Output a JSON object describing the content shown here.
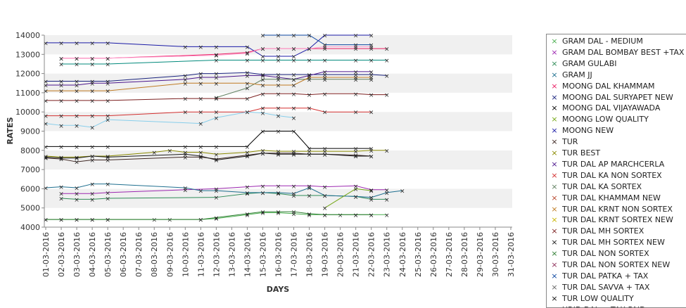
{
  "chart_data": {
    "type": "line",
    "title": "",
    "xlabel": "DAYS",
    "ylabel": "RATES",
    "ylim": [
      4000,
      14000
    ],
    "yticks": [
      "4000",
      "5000",
      "6000",
      "7000",
      "8000",
      "9000",
      "10000",
      "11000",
      "12000",
      "13000",
      "14000"
    ],
    "legend_position": "right",
    "grid": "alternating horizontal bands",
    "categories": [
      "01-03-2016",
      "02-03-2016",
      "03-03-2016",
      "04-03-2016",
      "05-03-2016",
      "06-03-2016",
      "07-03-2016",
      "08-03-2016",
      "09-03-2016",
      "10-03-2016",
      "11-03-2016",
      "12-03-2016",
      "13-03-2016",
      "14-03-2016",
      "15-03-2016",
      "16-03-2016",
      "17-03-2016",
      "18-03-2016",
      "19-03-2016",
      "20-03-2016",
      "21-03-2016",
      "22-03-2016",
      "23-03-2016",
      "24-03-2016",
      "25-03-2016",
      "26-03-2016",
      "27-03-2016",
      "28-03-2016",
      "29-03-2016",
      "30-03-2016",
      "31-03-2016"
    ],
    "series": [
      {
        "name": "GRAM DAL - MEDIUM",
        "color": "#4caf50",
        "values": [
          4400,
          4400,
          4400,
          4400,
          4400,
          null,
          null,
          4400,
          4400,
          null,
          4400,
          4450,
          null,
          4650,
          4750,
          4750,
          4700,
          4650,
          4650,
          4650,
          4650,
          4650,
          4650,
          null,
          null,
          null,
          null,
          null,
          null,
          null,
          null
        ]
      },
      {
        "name": "GRAM DAL BOMBAY BEST +TAX",
        "color": "#9c27b0",
        "values": [
          null,
          5750,
          5750,
          5750,
          5800,
          null,
          null,
          null,
          null,
          5950,
          null,
          6000,
          null,
          6100,
          6150,
          6150,
          6150,
          6150,
          6100,
          null,
          6150,
          5950,
          5950,
          null,
          null,
          null,
          null,
          null,
          null,
          null,
          null
        ]
      },
      {
        "name": "GRAM GULABI",
        "color": "#2e8b57",
        "values": [
          null,
          5500,
          5450,
          5450,
          5500,
          null,
          null,
          null,
          null,
          null,
          null,
          5550,
          null,
          5750,
          5800,
          5750,
          5650,
          5650,
          5650,
          null,
          5600,
          5450,
          5450,
          null,
          null,
          null,
          null,
          null,
          null,
          null,
          null
        ]
      },
      {
        "name": "GRAM JJ",
        "color": "#1e6f8f",
        "values": [
          6050,
          6100,
          6050,
          6250,
          6250,
          null,
          null,
          null,
          null,
          6050,
          5900,
          5900,
          null,
          5800,
          5800,
          5800,
          5750,
          6050,
          5650,
          null,
          5600,
          5550,
          5800,
          5900,
          null,
          null,
          null,
          null,
          null,
          null,
          null
        ]
      },
      {
        "name": "MOONG DAL KHAMMAM",
        "color": "#e91e63",
        "values": [
          null,
          12800,
          12800,
          12800,
          12800,
          null,
          null,
          null,
          null,
          null,
          null,
          13000,
          null,
          13100,
          13300,
          13300,
          13300,
          13300,
          13300,
          null,
          13300,
          13300,
          13300,
          null,
          null,
          null,
          null,
          null,
          null,
          null,
          null
        ]
      },
      {
        "name": "MOONG DAL SURYAPET NEW",
        "color": "#1a237e",
        "values": [
          11600,
          11600,
          11600,
          11600,
          11600,
          null,
          null,
          null,
          null,
          11900,
          12000,
          12000,
          null,
          12050,
          11950,
          11950,
          11950,
          11950,
          11950,
          null,
          11950,
          11950,
          11900,
          null,
          null,
          null,
          null,
          null,
          null,
          null,
          null
        ]
      },
      {
        "name": "MOONG DAL VIJAYAWADA",
        "color": "#000000",
        "values": [
          8200,
          8200,
          8200,
          8200,
          8200,
          null,
          null,
          null,
          null,
          8200,
          8200,
          8200,
          null,
          8200,
          9000,
          9000,
          9000,
          8100,
          8100,
          null,
          8100,
          8100,
          null,
          null,
          null,
          null,
          null,
          null,
          null,
          null,
          null
        ]
      },
      {
        "name": "MOONG LOW QUALITY",
        "color": "#76a818",
        "values": [
          null,
          null,
          null,
          null,
          null,
          null,
          null,
          null,
          null,
          null,
          null,
          null,
          null,
          null,
          null,
          null,
          null,
          null,
          5000,
          null,
          6000,
          5900,
          null,
          null,
          null,
          null,
          null,
          null,
          null,
          null,
          null
        ]
      },
      {
        "name": "MOONG NEW",
        "color": "#1a1aa6",
        "values": [
          13600,
          13600,
          13600,
          13600,
          13600,
          null,
          null,
          null,
          null,
          13400,
          13400,
          13400,
          null,
          13400,
          12900,
          12900,
          12900,
          13300,
          14000,
          null,
          14000,
          14000,
          null,
          null,
          null,
          null,
          null,
          null,
          null,
          null,
          null
        ]
      },
      {
        "name": "TUR",
        "color": "#3e2723",
        "values": [
          7600,
          7550,
          7400,
          7500,
          7500,
          null,
          null,
          null,
          null,
          7650,
          7650,
          7550,
          null,
          7750,
          7850,
          7850,
          7850,
          7800,
          7800,
          null,
          7750,
          7700,
          null,
          null,
          null,
          null,
          null,
          null,
          null,
          null,
          null
        ]
      },
      {
        "name": "TUR BEST",
        "color": "#8a8a00",
        "values": [
          7700,
          7650,
          7650,
          7700,
          7700,
          null,
          null,
          7900,
          8000,
          7900,
          7900,
          7800,
          null,
          7900,
          8000,
          7950,
          7950,
          7950,
          7950,
          null,
          7950,
          8000,
          8000,
          null,
          null,
          null,
          null,
          null,
          null,
          null,
          null
        ]
      },
      {
        "name": "TUR DAL AP MARCHCERLA",
        "color": "#4a148c",
        "values": [
          11400,
          11400,
          11400,
          11500,
          11500,
          null,
          null,
          null,
          null,
          11700,
          11800,
          11800,
          null,
          11900,
          11900,
          11800,
          11700,
          11900,
          12100,
          null,
          12100,
          12100,
          null,
          null,
          null,
          null,
          null,
          null,
          null,
          null,
          null
        ]
      },
      {
        "name": "TUR DAL KA NON SORTEX",
        "color": "#d32f2f",
        "values": [
          9800,
          9800,
          9800,
          9800,
          9800,
          null,
          null,
          null,
          null,
          10000,
          10000,
          10000,
          null,
          10000,
          10200,
          10200,
          10200,
          10200,
          10000,
          null,
          10000,
          10000,
          null,
          null,
          null,
          null,
          null,
          null,
          null,
          null,
          null
        ]
      },
      {
        "name": "TUR DAL KA SORTEX",
        "color": "#5f7f5f",
        "values": [
          null,
          null,
          null,
          null,
          null,
          null,
          null,
          null,
          null,
          null,
          null,
          10750,
          null,
          11250,
          11700,
          11700,
          11700,
          11700,
          11700,
          null,
          11700,
          11700,
          null,
          null,
          null,
          null,
          null,
          null,
          null,
          null,
          null
        ]
      },
      {
        "name": "TUR DAL KHAMMAM NEW",
        "color": "#b8462b",
        "values": [
          null,
          null,
          null,
          null,
          null,
          null,
          null,
          null,
          null,
          null,
          null,
          null,
          null,
          null,
          null,
          null,
          null,
          null,
          null,
          null,
          null,
          null,
          null,
          null,
          null,
          null,
          null,
          null,
          null,
          null,
          null
        ]
      },
      {
        "name": "TUR DAL KRNT NON SORTEX",
        "color": "#bf7a22",
        "values": [
          11100,
          11100,
          11100,
          11100,
          11100,
          null,
          null,
          null,
          null,
          11500,
          11500,
          11500,
          null,
          11500,
          11400,
          11400,
          11400,
          11800,
          11800,
          null,
          11800,
          11800,
          null,
          null,
          null,
          null,
          null,
          null,
          null,
          null,
          null
        ]
      },
      {
        "name": "TUR DAL KRNT SORTEX NEW",
        "color": "#c9b400",
        "values": [
          null,
          null,
          null,
          null,
          null,
          null,
          null,
          null,
          null,
          null,
          null,
          null,
          null,
          null,
          null,
          null,
          null,
          null,
          null,
          null,
          null,
          null,
          null,
          null,
          null,
          null,
          null,
          null,
          null,
          null,
          null
        ]
      },
      {
        "name": "TUR DAL MH SORTEX",
        "color": "#7b1f1f",
        "values": [
          10600,
          10600,
          10600,
          10600,
          10600,
          null,
          null,
          null,
          null,
          10700,
          10700,
          10700,
          null,
          10700,
          10950,
          10950,
          10950,
          10900,
          10950,
          null,
          10950,
          10900,
          10900,
          null,
          null,
          null,
          null,
          null,
          null,
          null,
          null
        ]
      },
      {
        "name": "TUR DAL MH SORTEX NEW",
        "color": "#1b1b1b",
        "values": [
          7650,
          7600,
          7600,
          7700,
          7650,
          null,
          null,
          null,
          null,
          7800,
          7700,
          7500,
          null,
          7700,
          7850,
          7800,
          7800,
          7800,
          7800,
          null,
          7700,
          7700,
          null,
          null,
          null,
          null,
          null,
          null,
          null,
          null,
          null
        ]
      },
      {
        "name": "TUR DAL NON SORTEX",
        "color": "#2e7d32",
        "values": [
          4400,
          4400,
          4400,
          4400,
          4400,
          null,
          null,
          null,
          null,
          null,
          4400,
          4500,
          null,
          4700,
          4800,
          4800,
          4800,
          4700,
          4650,
          null,
          4650,
          4650,
          null,
          null,
          null,
          null,
          null,
          null,
          null,
          null,
          null
        ]
      },
      {
        "name": "TUR DAL NON SORTEX NEW",
        "color": "#8e2f5a",
        "values": [
          null,
          null,
          null,
          null,
          null,
          null,
          null,
          null,
          null,
          null,
          null,
          null,
          null,
          null,
          null,
          null,
          null,
          null,
          null,
          null,
          null,
          null,
          null,
          null,
          null,
          null,
          null,
          null,
          null,
          null,
          null
        ]
      },
      {
        "name": "TUR DAL PATKA + TAX",
        "color": "#0d47a1",
        "values": [
          null,
          null,
          null,
          null,
          null,
          null,
          null,
          null,
          null,
          null,
          null,
          null,
          null,
          null,
          14000,
          14000,
          14000,
          14000,
          13500,
          null,
          13500,
          13500,
          null,
          null,
          null,
          null,
          null,
          null,
          null,
          null,
          null
        ]
      },
      {
        "name": "TUR DAL SAVVA + TAX",
        "color": "#666666",
        "values": [
          null,
          null,
          null,
          null,
          null,
          null,
          null,
          null,
          null,
          null,
          null,
          null,
          null,
          null,
          null,
          null,
          null,
          null,
          null,
          null,
          null,
          null,
          null,
          null,
          null,
          null,
          null,
          null,
          null,
          null,
          null
        ]
      },
      {
        "name": "TUR LOW QUALITY",
        "color": "#111111",
        "values": [
          null,
          null,
          null,
          null,
          null,
          null,
          null,
          null,
          null,
          null,
          null,
          null,
          null,
          null,
          null,
          null,
          null,
          null,
          null,
          null,
          null,
          null,
          null,
          null,
          null,
          null,
          null,
          null,
          null,
          null,
          null
        ]
      },
      {
        "name": "URID DAL + TAX PAID",
        "color": "#00897b",
        "values": [
          null,
          12500,
          12500,
          12500,
          12500,
          null,
          null,
          null,
          null,
          null,
          null,
          12700,
          null,
          12700,
          12700,
          12700,
          12700,
          12700,
          12700,
          null,
          12700,
          12700,
          12700,
          null,
          null,
          null,
          null,
          null,
          null,
          null,
          null
        ]
      },
      {
        "name": "",
        "color": "#87ceeb",
        "values": [
          9400,
          9300,
          9300,
          9200,
          9600,
          null,
          null,
          null,
          null,
          null,
          9400,
          9700,
          null,
          10000,
          9950,
          9800,
          9700,
          null,
          null,
          null,
          null,
          null,
          null,
          null,
          null,
          null,
          null,
          null,
          null,
          null,
          null
        ]
      },
      {
        "name": "",
        "color": "#ff9ecf",
        "values": [
          null,
          12800,
          12800,
          12800,
          12800,
          null,
          null,
          null,
          null,
          null,
          null,
          12950,
          null,
          13050,
          13300,
          13300,
          13300,
          13300,
          13400,
          null,
          13400,
          13400,
          null,
          null,
          null,
          null,
          null,
          null,
          null,
          null,
          null
        ]
      }
    ]
  }
}
